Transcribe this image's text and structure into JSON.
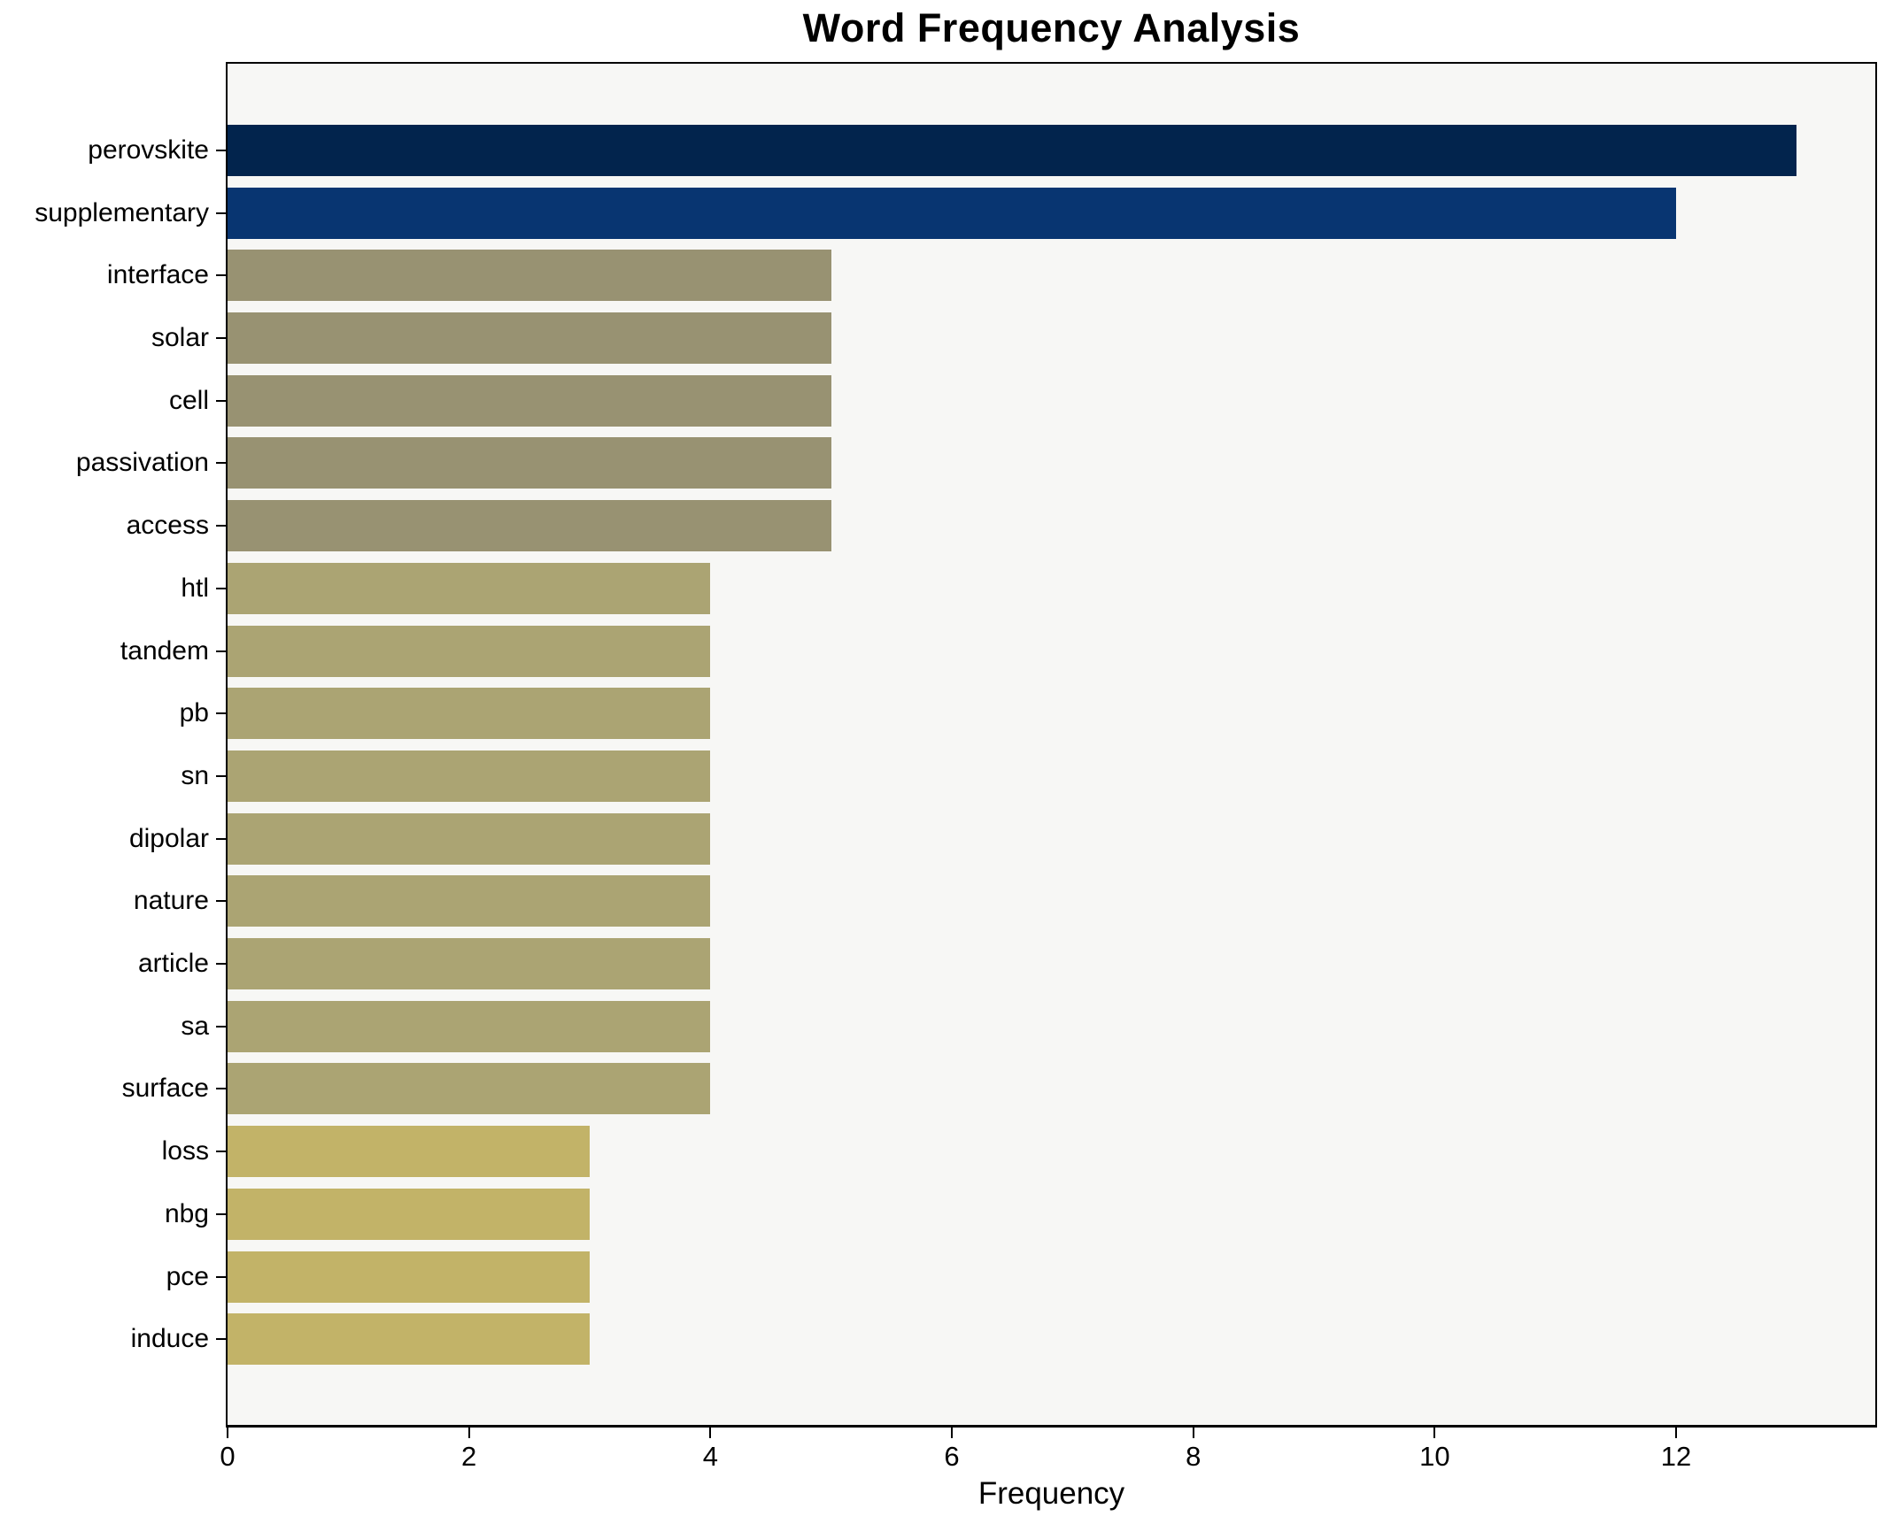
{
  "page": {
    "background": "#ffffff"
  },
  "chart_data": {
    "type": "bar",
    "orientation": "horizontal",
    "title": "Word Frequency Analysis",
    "xlabel": "Frequency",
    "ylabel": "",
    "categories": [
      "perovskite",
      "supplementary",
      "interface",
      "solar",
      "cell",
      "passivation",
      "access",
      "htl",
      "tandem",
      "pb",
      "sn",
      "dipolar",
      "nature",
      "article",
      "sa",
      "surface",
      "loss",
      "nbg",
      "pce",
      "induce"
    ],
    "values": [
      13,
      12,
      5,
      5,
      5,
      5,
      5,
      4,
      4,
      4,
      4,
      4,
      4,
      4,
      4,
      4,
      3,
      3,
      3,
      3
    ],
    "bar_colors": [
      "#02244d",
      "#083571",
      "#989272",
      "#989272",
      "#989272",
      "#989272",
      "#989272",
      "#aba473",
      "#aba473",
      "#aba473",
      "#aba473",
      "#aba473",
      "#aba473",
      "#aba473",
      "#aba473",
      "#aba473",
      "#c2b368",
      "#c2b368",
      "#c2b368",
      "#c2b368"
    ],
    "xlim": [
      0,
      13.65
    ],
    "xticks": [
      0,
      2,
      4,
      6,
      8,
      10,
      12
    ],
    "grid": false,
    "legend": "none",
    "plot_background": "#f7f7f5",
    "spine_color": "#000000",
    "text_color": "#000000"
  }
}
